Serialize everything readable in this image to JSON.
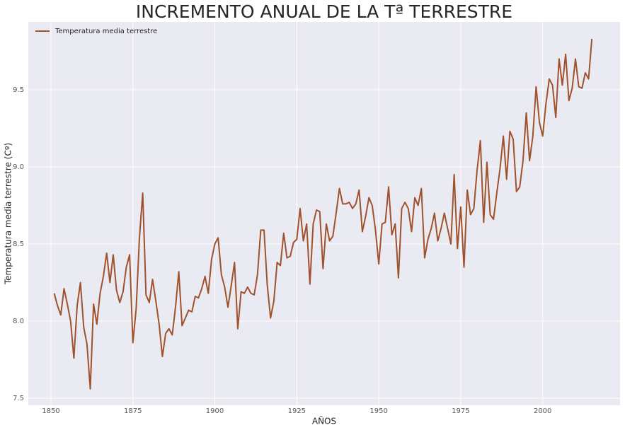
{
  "chart_data": {
    "type": "line",
    "title": "INCREMENTO ANUAL DE LA Tª TERRESTRE",
    "x_label": "AÑOS",
    "y_label": "Temperatura media terrestre (Cº)",
    "x": [
      1851,
      1852,
      1853,
      1854,
      1855,
      1856,
      1857,
      1858,
      1859,
      1860,
      1861,
      1862,
      1863,
      1864,
      1865,
      1866,
      1867,
      1868,
      1869,
      1870,
      1871,
      1872,
      1873,
      1874,
      1875,
      1876,
      1877,
      1878,
      1879,
      1880,
      1881,
      1882,
      1883,
      1884,
      1885,
      1886,
      1887,
      1888,
      1889,
      1890,
      1891,
      1892,
      1893,
      1894,
      1895,
      1896,
      1897,
      1898,
      1899,
      1900,
      1901,
      1902,
      1903,
      1904,
      1905,
      1906,
      1907,
      1908,
      1909,
      1910,
      1911,
      1912,
      1913,
      1914,
      1915,
      1916,
      1917,
      1918,
      1919,
      1920,
      1921,
      1922,
      1923,
      1924,
      1925,
      1926,
      1927,
      1928,
      1929,
      1930,
      1931,
      1932,
      1933,
      1934,
      1935,
      1936,
      1937,
      1938,
      1939,
      1940,
      1941,
      1942,
      1943,
      1944,
      1945,
      1946,
      1947,
      1948,
      1949,
      1950,
      1951,
      1952,
      1953,
      1954,
      1955,
      1956,
      1957,
      1958,
      1959,
      1960,
      1961,
      1962,
      1963,
      1964,
      1965,
      1966,
      1967,
      1968,
      1969,
      1970,
      1971,
      1972,
      1973,
      1974,
      1975,
      1976,
      1977,
      1978,
      1979,
      1980,
      1981,
      1982,
      1983,
      1984,
      1985,
      1986,
      1987,
      1988,
      1989,
      1990,
      1991,
      1992,
      1993,
      1994,
      1995,
      1996,
      1997,
      1998,
      1999,
      2000,
      2001,
      2002,
      2003,
      2004,
      2005,
      2006,
      2007,
      2008,
      2009,
      2010,
      2011,
      2012,
      2013,
      2014,
      2015
    ],
    "series": [
      {
        "name": "Temperatura media terrestre",
        "color": "#a0522d",
        "values": [
          8.18,
          8.1,
          8.04,
          8.21,
          8.11,
          8.0,
          7.76,
          8.1,
          8.25,
          7.96,
          7.85,
          7.56,
          8.11,
          7.98,
          8.18,
          8.29,
          8.44,
          8.25,
          8.43,
          8.2,
          8.12,
          8.19,
          8.35,
          8.43,
          7.86,
          8.08,
          8.54,
          8.83,
          8.17,
          8.12,
          8.27,
          8.13,
          7.98,
          7.77,
          7.92,
          7.95,
          7.91,
          8.09,
          8.32,
          7.97,
          8.02,
          8.07,
          8.06,
          8.16,
          8.15,
          8.21,
          8.29,
          8.18,
          8.4,
          8.5,
          8.54,
          8.3,
          8.22,
          8.09,
          8.23,
          8.38,
          7.95,
          8.19,
          8.18,
          8.22,
          8.18,
          8.17,
          8.3,
          8.59,
          8.59,
          8.23,
          8.02,
          8.13,
          8.38,
          8.36,
          8.57,
          8.41,
          8.42,
          8.51,
          8.53,
          8.73,
          8.52,
          8.63,
          8.24,
          8.63,
          8.72,
          8.71,
          8.34,
          8.63,
          8.52,
          8.55,
          8.7,
          8.86,
          8.76,
          8.76,
          8.77,
          8.73,
          8.76,
          8.85,
          8.58,
          8.68,
          8.8,
          8.75,
          8.59,
          8.37,
          8.63,
          8.64,
          8.87,
          8.56,
          8.63,
          8.28,
          8.73,
          8.77,
          8.73,
          8.58,
          8.8,
          8.75,
          8.86,
          8.41,
          8.53,
          8.6,
          8.7,
          8.52,
          8.6,
          8.7,
          8.6,
          8.5,
          8.95,
          8.47,
          8.74,
          8.35,
          8.85,
          8.69,
          8.73,
          8.98,
          9.17,
          8.64,
          9.03,
          8.69,
          8.66,
          8.83,
          8.99,
          9.2,
          8.92,
          9.23,
          9.18,
          8.84,
          8.87,
          9.04,
          9.35,
          9.04,
          9.2,
          9.52,
          9.29,
          9.2,
          9.41,
          9.57,
          9.53,
          9.32,
          9.7,
          9.53,
          9.73,
          9.43,
          9.51,
          9.7,
          9.52,
          9.51,
          9.61,
          9.57,
          9.83
        ]
      }
    ],
    "xlim": [
      1843.1,
      2023.6
    ],
    "ylim": [
      7.454,
      9.94
    ],
    "xticks": [
      1850,
      1875,
      1900,
      1925,
      1950,
      1975,
      2000
    ],
    "yticks": [
      7.5,
      {
        "value": 8,
        "label": "8.0"
      },
      8.5,
      {
        "value": 9,
        "label": "9.0"
      },
      9.5
    ],
    "grid": true,
    "legend": "upper-left"
  }
}
